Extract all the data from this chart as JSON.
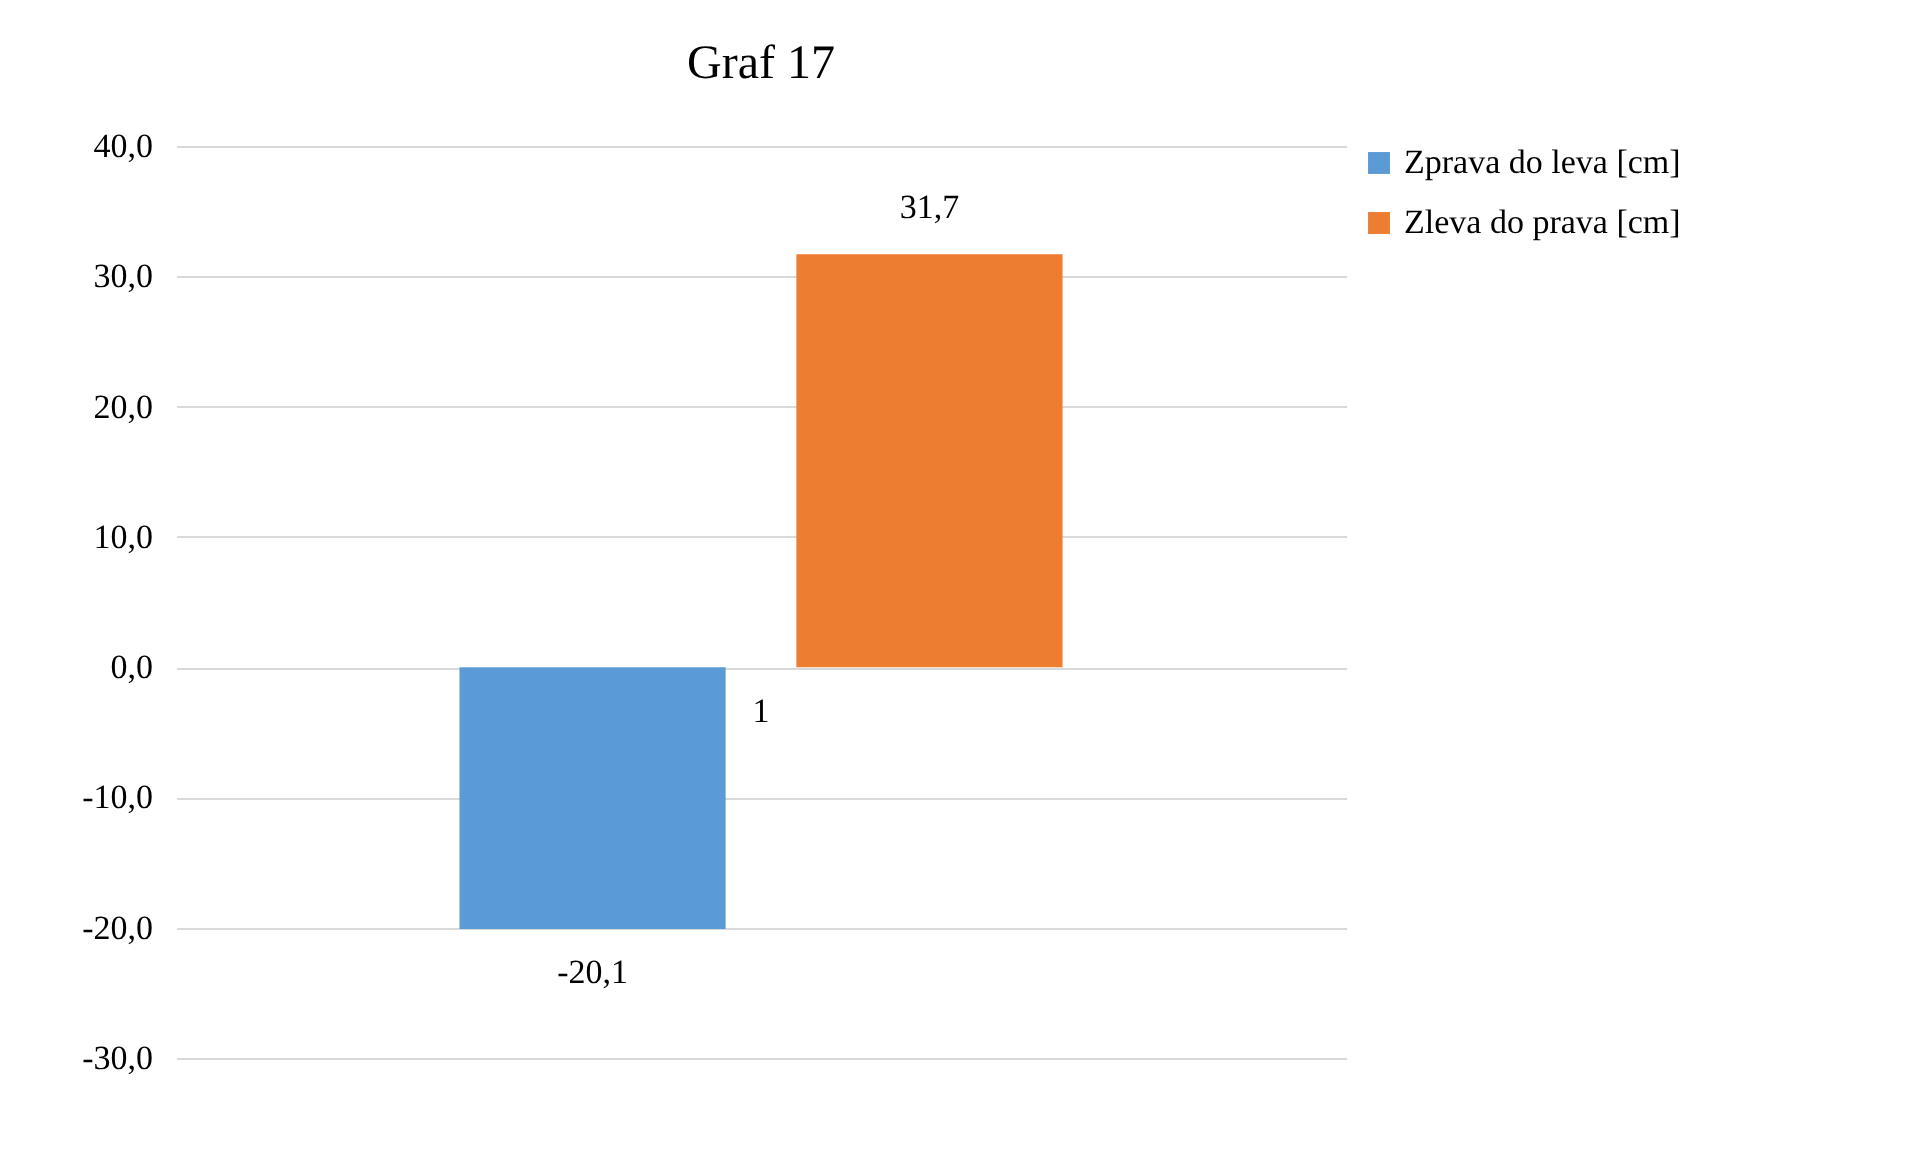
{
  "chart_data": {
    "type": "bar",
    "title": "Graf 17",
    "categories": [
      "1"
    ],
    "series": [
      {
        "name": "Zprava do leva [cm]",
        "color": "#5b9bd5",
        "values": [
          -20.1
        ],
        "value_labels": [
          "-20,1"
        ]
      },
      {
        "name": "Zleva do prava [cm]",
        "color": "#ed7d31",
        "values": [
          31.7
        ],
        "value_labels": [
          "31,7"
        ]
      }
    ],
    "ylim": [
      -30,
      40
    ],
    "yticks": [
      {
        "value": -30,
        "label": "-30,0"
      },
      {
        "value": -20,
        "label": "-20,0"
      },
      {
        "value": -10,
        "label": "-10,0"
      },
      {
        "value": 0,
        "label": "0,0"
      },
      {
        "value": 10,
        "label": "10,0"
      },
      {
        "value": 20,
        "label": "20,0"
      },
      {
        "value": 30,
        "label": "30,0"
      },
      {
        "value": 40,
        "label": "40,0"
      }
    ],
    "grid": "y",
    "legend": "right"
  }
}
